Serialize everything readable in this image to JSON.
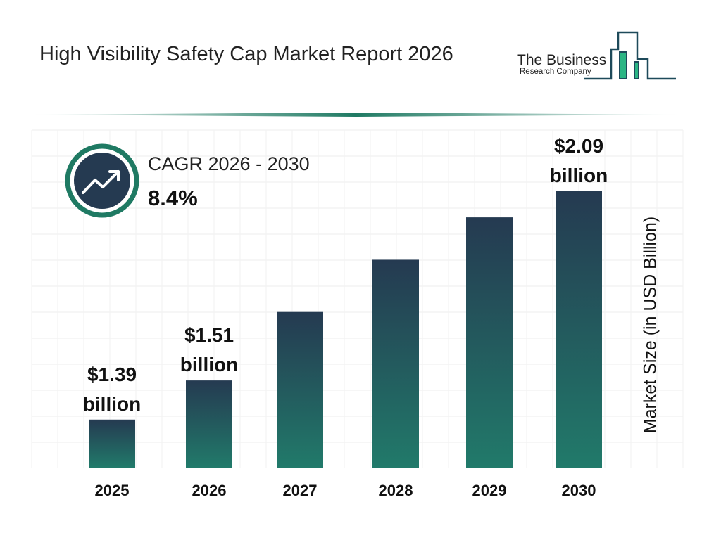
{
  "header": {
    "title": "High Visibility Safety Cap Market Report 2026"
  },
  "logo": {
    "line1": "The Business",
    "line2": "Research Company"
  },
  "cagr": {
    "label": "CAGR 2026 - 2030",
    "value": "8.4%",
    "icon": "trending-up-icon"
  },
  "colors": {
    "bar_top": "#253a51",
    "bar_bottom": "#217a6a",
    "accent": "#1f7a63",
    "logo_green": "#2bb584",
    "logo_dark": "#1e4a5a"
  },
  "chart_data": {
    "type": "bar",
    "title": "",
    "xlabel": "",
    "ylabel": "Market Size (in USD Billion)",
    "categories": [
      "2025",
      "2026",
      "2027",
      "2028",
      "2029",
      "2030"
    ],
    "values": [
      1.39,
      1.51,
      1.72,
      1.88,
      2.01,
      2.09
    ],
    "data_labels": [
      "$1.39 billion",
      "$1.51 billion",
      "",
      "",
      "",
      "$2.09 billion"
    ],
    "grid": true
  }
}
